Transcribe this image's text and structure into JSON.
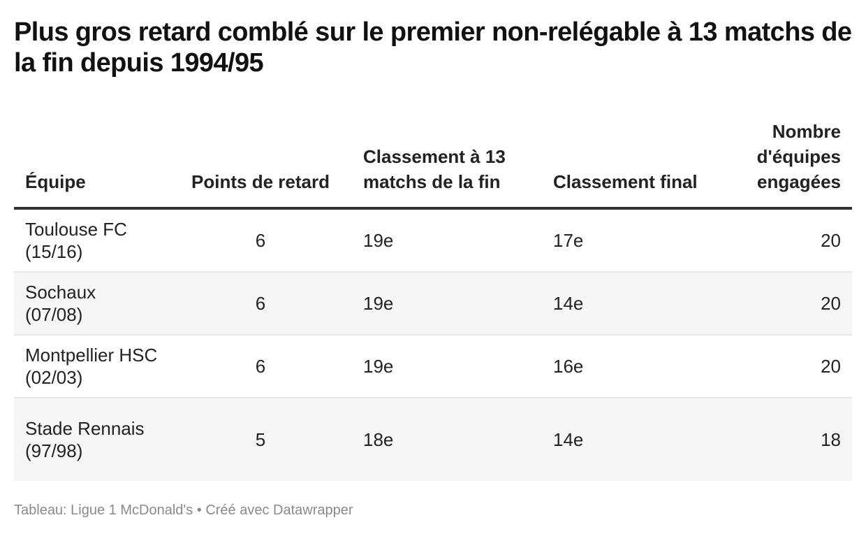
{
  "title": "Plus gros retard comblé sur le premier non-relégable à 13 matchs de la fin depuis 1994/95",
  "table": {
    "headers": {
      "team": "Équipe",
      "points_behind": "Points de retard",
      "rank_13": "Classement à 13 matchs de la fin",
      "final_rank": "Classement final",
      "teams_count": "Nombre d'équipes engagées"
    },
    "rows": [
      {
        "team": "Toulouse FC (15/16)",
        "points_behind": "6",
        "rank_13": "19e",
        "final_rank": "17e",
        "teams_count": "20"
      },
      {
        "team": "Sochaux (07/08)",
        "points_behind": "6",
        "rank_13": "19e",
        "final_rank": "14e",
        "teams_count": "20"
      },
      {
        "team": "Montpellier HSC (02/03)",
        "points_behind": "6",
        "rank_13": "19e",
        "final_rank": "16e",
        "teams_count": "20"
      },
      {
        "team": "Stade Rennais (97/98)",
        "points_behind": "5",
        "rank_13": "18e",
        "final_rank": "14e",
        "teams_count": "18"
      }
    ]
  },
  "footer": "Tableau: Ligue 1 McDonald's • Créé avec Datawrapper"
}
